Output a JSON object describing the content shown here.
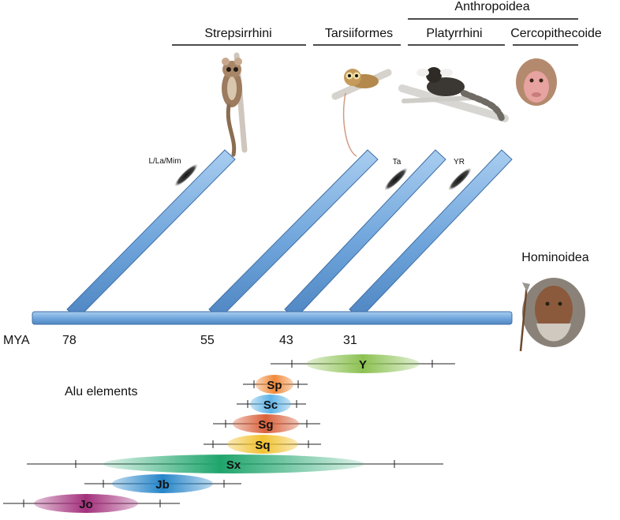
{
  "clades": {
    "anthropoidea": "Anthropoidea",
    "strepsirrhini": "Strepsirrhini",
    "tarsiiformes": "Tarsiiformes",
    "platyrrhini": "Platyrrhini",
    "cercopithecoide": "Cercopithecoide",
    "hominoidea": "Hominoidea"
  },
  "axis": {
    "label": "MYA",
    "ticks": [
      "78",
      "55",
      "43",
      "31"
    ]
  },
  "insertions": [
    "L/La/Mim",
    "Ta",
    "YR"
  ],
  "alu": {
    "title": "Alu elements",
    "subfamilies": [
      {
        "name": "Y",
        "color": "#8cc152"
      },
      {
        "name": "Sp",
        "color": "#f08a3a"
      },
      {
        "name": "Sc",
        "color": "#5fb3e6"
      },
      {
        "name": "Sg",
        "color": "#d9603a"
      },
      {
        "name": "Sq",
        "color": "#f2c230"
      },
      {
        "name": "Sx",
        "color": "#1fa56c"
      },
      {
        "name": "Jb",
        "color": "#2585c9"
      },
      {
        "name": "Jo",
        "color": "#a3307c"
      }
    ]
  },
  "colors": {
    "branch": "#7aaee0",
    "branch_edge": "#3f6fa6"
  },
  "icons": [
    "mouse-lemur-icon",
    "tarsier-icon",
    "marmoset-icon",
    "macaque-icon",
    "human-icon"
  ]
}
